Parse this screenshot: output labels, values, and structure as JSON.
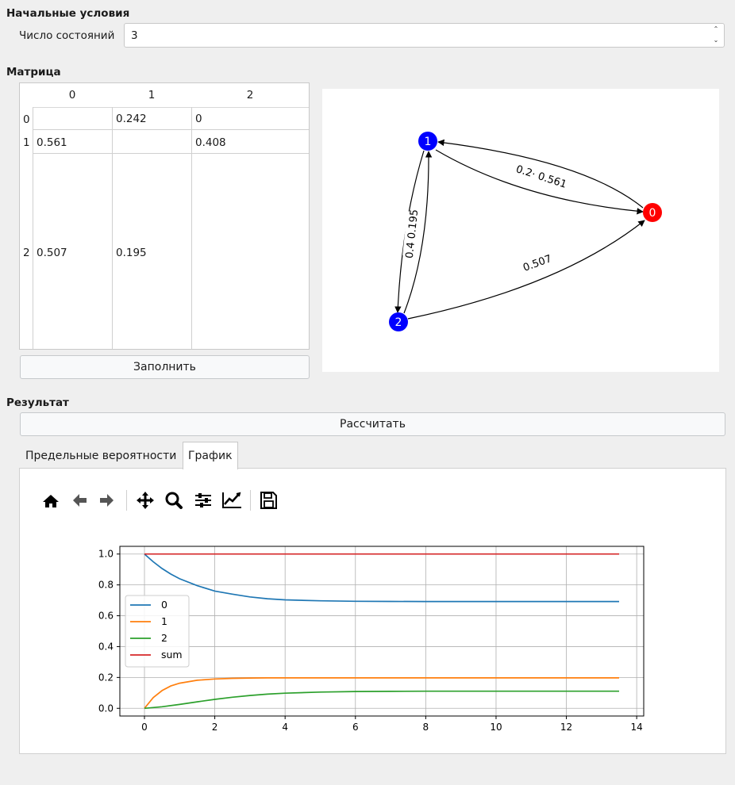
{
  "initial": {
    "section_title": "Начальные условия",
    "states_label": "Число состояний",
    "states_value": "3",
    "spin_up": "⌃",
    "spin_down": "⌄"
  },
  "matrix": {
    "section_title": "Матрица",
    "columns": [
      "0",
      "1",
      "2"
    ],
    "rows": [
      {
        "header": "0",
        "cells": [
          "",
          "0.242",
          "0"
        ]
      },
      {
        "header": "1",
        "cells": [
          "0.561",
          "",
          "0.408"
        ]
      },
      {
        "header": "2",
        "cells": [
          "0.507",
          "0.195",
          ""
        ]
      }
    ],
    "fill_button": "Заполнить"
  },
  "graph": {
    "nodes": [
      {
        "id": "0",
        "color": "#ff0000"
      },
      {
        "id": "1",
        "color": "#0000ff"
      },
      {
        "id": "2",
        "color": "#0000ff"
      }
    ],
    "edge_labels": {
      "edge_0_1": "0.2· 0.561",
      "edge_1_2": "0.4 0.195",
      "edge_2_0": "0.507"
    }
  },
  "result": {
    "section_title": "Результат",
    "calculate_button": "Рассчитать",
    "tabs": [
      {
        "label": "Предельные вероятности",
        "active": false
      },
      {
        "label": "График",
        "active": true
      }
    ]
  },
  "toolbar": {
    "icons": [
      "home-icon",
      "back-icon",
      "forward-icon",
      "pan-icon",
      "zoom-icon",
      "configure-icon",
      "axes-icon",
      "save-icon"
    ]
  },
  "chart_data": {
    "type": "line",
    "title": "",
    "xlabel": "",
    "ylabel": "",
    "xlim": [
      -0.7,
      14.2
    ],
    "ylim": [
      -0.05,
      1.05
    ],
    "xticks": [
      0,
      2,
      4,
      6,
      8,
      10,
      12,
      14
    ],
    "yticks": [
      0.0,
      0.2,
      0.4,
      0.6,
      0.8,
      1.0
    ],
    "grid": true,
    "legend_position": "left",
    "series": [
      {
        "name": "0",
        "color": "#1f77b4",
        "x": [
          0,
          0.25,
          0.5,
          0.75,
          1,
          1.5,
          2,
          2.5,
          3,
          3.5,
          4,
          5,
          6,
          7,
          8,
          10,
          12,
          13.5
        ],
        "y": [
          1.0,
          0.95,
          0.906,
          0.87,
          0.84,
          0.795,
          0.76,
          0.74,
          0.722,
          0.71,
          0.703,
          0.697,
          0.694,
          0.693,
          0.692,
          0.692,
          0.692,
          0.692
        ]
      },
      {
        "name": "1",
        "color": "#ff7f0e",
        "x": [
          0,
          0.25,
          0.5,
          0.75,
          1,
          1.5,
          2,
          2.5,
          3,
          3.5,
          4,
          5,
          6,
          8,
          10,
          12,
          13.5
        ],
        "y": [
          0.0,
          0.07,
          0.115,
          0.145,
          0.163,
          0.182,
          0.19,
          0.194,
          0.196,
          0.197,
          0.197,
          0.197,
          0.197,
          0.197,
          0.197,
          0.197,
          0.197
        ]
      },
      {
        "name": "2",
        "color": "#2ca02c",
        "x": [
          0,
          0.5,
          1,
          1.5,
          2,
          2.5,
          3,
          3.5,
          4,
          5,
          6,
          7,
          8,
          10,
          12,
          13.5
        ],
        "y": [
          0.0,
          0.01,
          0.025,
          0.042,
          0.058,
          0.072,
          0.083,
          0.092,
          0.098,
          0.105,
          0.109,
          0.11,
          0.111,
          0.111,
          0.111,
          0.111
        ]
      },
      {
        "name": "sum",
        "color": "#d62728",
        "x": [
          0,
          13.5
        ],
        "y": [
          1.0,
          1.0
        ]
      }
    ]
  }
}
